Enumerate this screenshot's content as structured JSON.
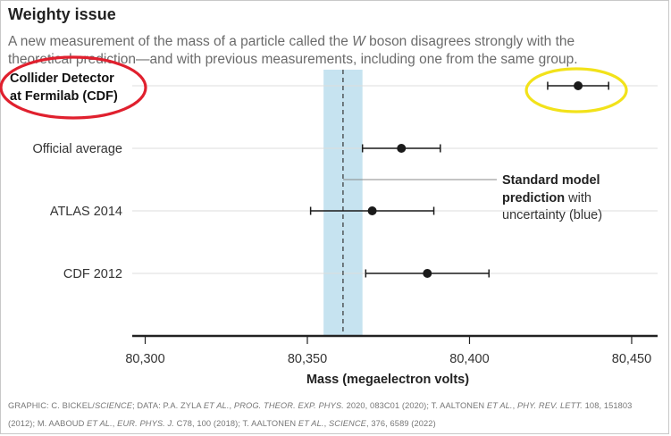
{
  "header": {
    "title": "Weighty issue",
    "subtitle_before": "A new measurement of the mass of a particle called the ",
    "subtitle_em": "W",
    "subtitle_after": " boson disagrees strongly with the theoretical prediction—and with previous measurements, including one from the same group."
  },
  "chart_data": {
    "type": "errorbar",
    "xlabel": "Mass (megaelectron volts)",
    "xlim": [
      80296,
      80458
    ],
    "xticks": [
      80300,
      80350,
      80400,
      80450
    ],
    "xtick_labels": [
      "80,300",
      "80,350",
      "80,400",
      "80,450"
    ],
    "grid": "horizontal",
    "points": [
      {
        "label_lines": [
          "Collider Detector",
          "at Fermilab (CDF)"
        ],
        "bold": true,
        "value": 80433.5,
        "low": 80424.1,
        "high": 80442.9
      },
      {
        "label_lines": [
          "Official average"
        ],
        "bold": false,
        "value": 80379,
        "low": 80367,
        "high": 80391
      },
      {
        "label_lines": [
          "ATLAS 2014"
        ],
        "bold": false,
        "value": 80370,
        "low": 80351,
        "high": 80389
      },
      {
        "label_lines": [
          "CDF 2012"
        ],
        "bold": false,
        "value": 80387,
        "low": 80368,
        "high": 80406
      }
    ],
    "standard_model": {
      "value": 80361,
      "band": [
        80355,
        80367
      ],
      "band_color": "#c6e3f0",
      "annotation_bold_lines": [
        "Standard model",
        "prediction"
      ],
      "annotation_rest": " with",
      "annotation_last": "uncertainty (blue)"
    },
    "markers": {
      "red_ellipse_color": "#e0202e",
      "yellow_ellipse_color": "#f2e21a"
    }
  },
  "credit": {
    "p1": "GRAPHIC: C. BICKEL/",
    "p2": "SCIENCE",
    "p3": "; DATA: P.A. ZYLA ",
    "p4": "ET AL.",
    "p5": ", ",
    "p6": "PROG. THEOR. EXP. PHYS.",
    "p7": " 2020, 083C01 (2020); T. AALTONEN ",
    "p8": "ET AL.",
    "p9": ", ",
    "p10": "PHY. REV. LETT.",
    "p11": " 108, 151803 (2012); M. AABOUD ",
    "p12": "ET AL.",
    "p13": ", ",
    "p14": "EUR. PHYS. J.",
    "p15": " C78, 100 (2018); T. AALTONEN ",
    "p16": "ET AL.",
    "p17": ", ",
    "p18": "SCIENCE",
    "p19": ", 376, 6589 (2022)"
  }
}
